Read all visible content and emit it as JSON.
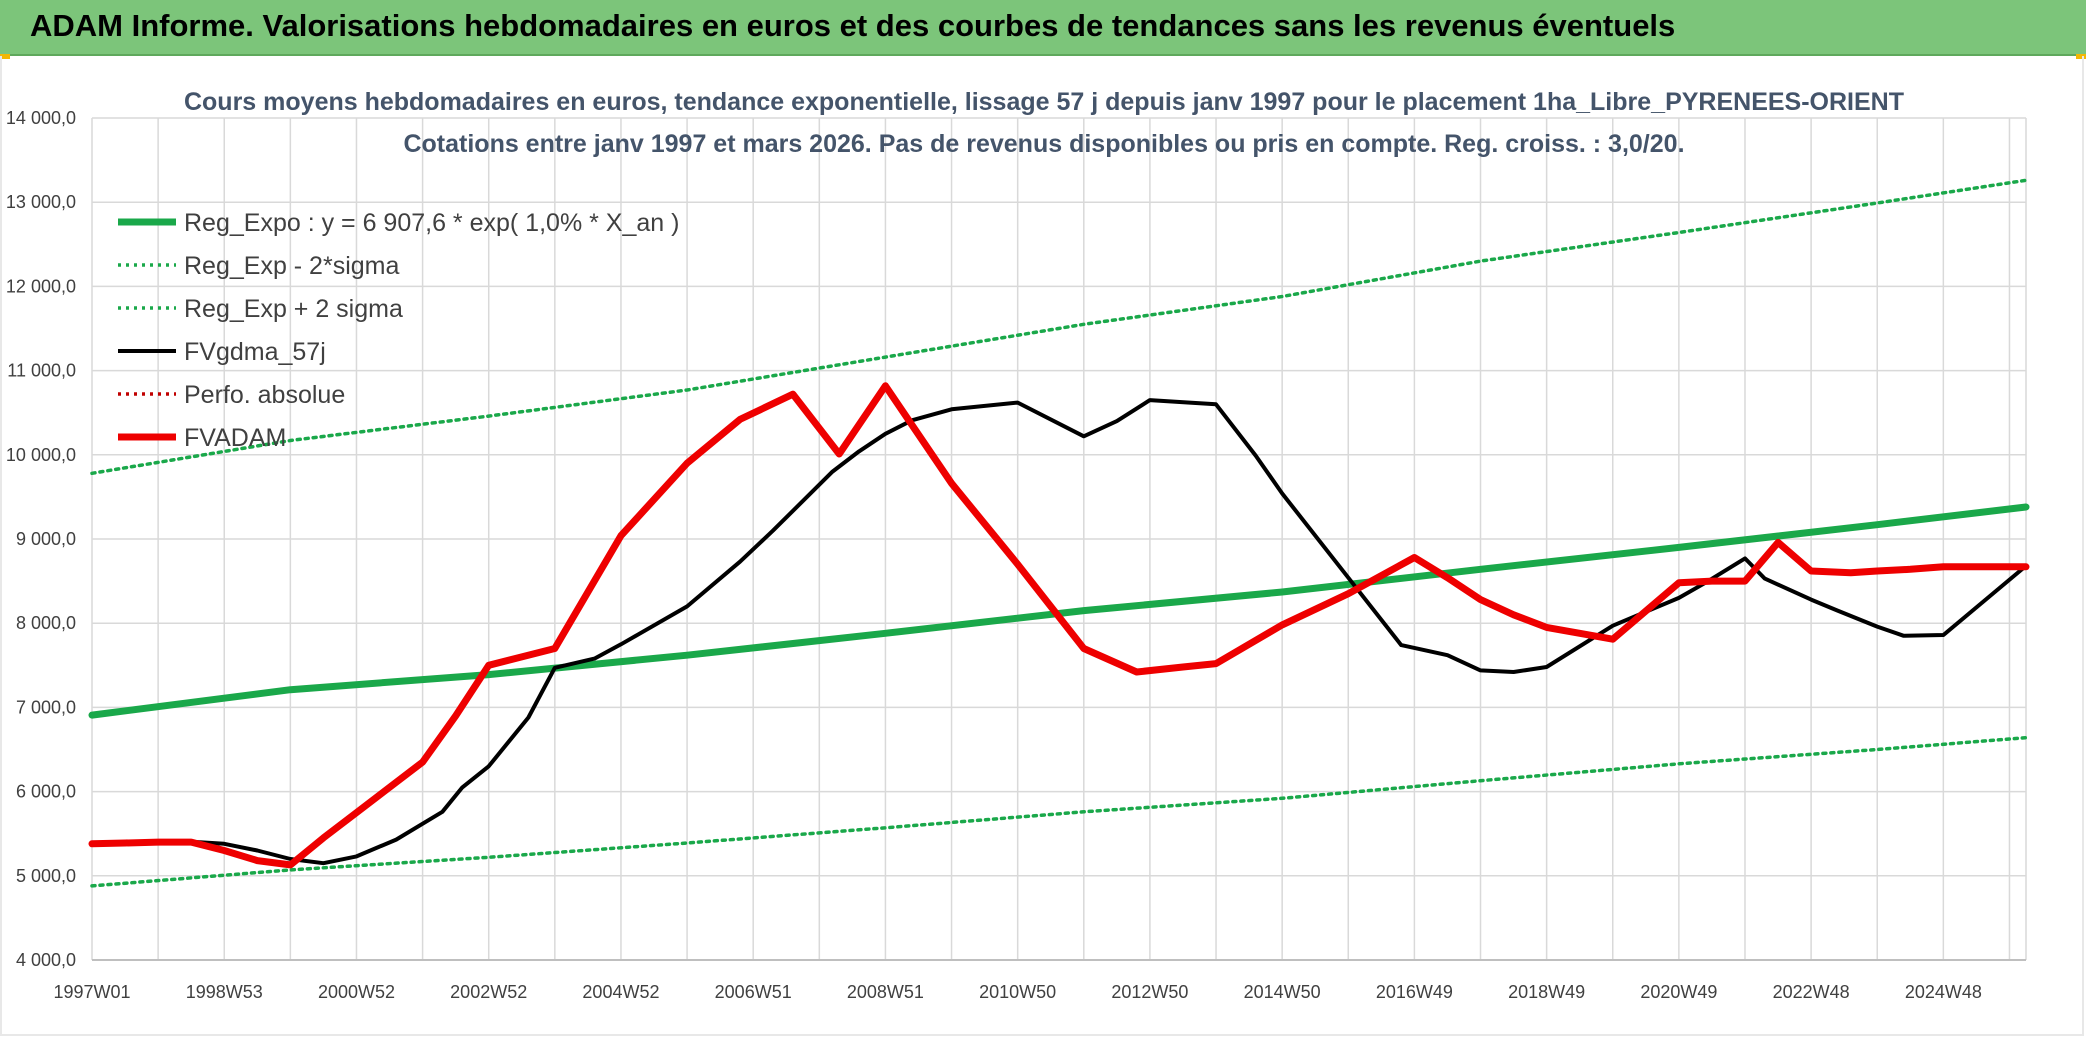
{
  "header": {
    "title": "ADAM Informe. Valorisations hebdomadaires en euros et des courbes de tendances sans les revenus éventuels"
  },
  "colors": {
    "banner": "#7cc57a",
    "trend": "#1aa84a",
    "band": "#1aa84a",
    "fv": "#000000",
    "perfo": "#c00000",
    "adam": "#ee0000",
    "grid": "#d9d9d9"
  },
  "chart_data": {
    "type": "line",
    "title": "Cours moyens hebdomadaires en euros, tendance exponentielle, lissage 57 j depuis janv 1997 pour le placement 1ha_Libre_PYRENEES-ORIENT",
    "subtitle": "Cotations entre janv 1997 et mars 2026. Pas de revenus disponibles ou pris en compte. Reg. croiss. : 3,0/20.",
    "xlabel": "",
    "ylabel": "",
    "x_range": [
      1997.0,
      2026.25
    ],
    "ylim": [
      4000,
      14000
    ],
    "y_ticks": [
      {
        "value": 4000,
        "label": "4 000,0"
      },
      {
        "value": 5000,
        "label": "5 000,0"
      },
      {
        "value": 6000,
        "label": "6 000,0"
      },
      {
        "value": 7000,
        "label": "7 000,0"
      },
      {
        "value": 8000,
        "label": "8 000,0"
      },
      {
        "value": 9000,
        "label": "9 000,0"
      },
      {
        "value": 10000,
        "label": "10 000,0"
      },
      {
        "value": 11000,
        "label": "11 000,0"
      },
      {
        "value": 12000,
        "label": "12 000,0"
      },
      {
        "value": 13000,
        "label": "13 000,0"
      },
      {
        "value": 14000,
        "label": "14 000,0"
      }
    ],
    "x_ticks": [
      {
        "value": 1997.0,
        "label": "1997W01"
      },
      {
        "value": 1999.0,
        "label": "1998W53"
      },
      {
        "value": 2001.0,
        "label": "2000W52"
      },
      {
        "value": 2003.0,
        "label": "2002W52"
      },
      {
        "value": 2005.0,
        "label": "2004W52"
      },
      {
        "value": 2007.0,
        "label": "2006W51"
      },
      {
        "value": 2009.0,
        "label": "2008W51"
      },
      {
        "value": 2011.0,
        "label": "2010W50"
      },
      {
        "value": 2013.0,
        "label": "2012W50"
      },
      {
        "value": 2015.0,
        "label": "2014W50"
      },
      {
        "value": 2017.0,
        "label": "2016W49"
      },
      {
        "value": 2019.0,
        "label": "2018W49"
      },
      {
        "value": 2021.0,
        "label": "2020W49"
      },
      {
        "value": 2023.0,
        "label": "2022W48"
      },
      {
        "value": 2025.0,
        "label": "2024W48"
      }
    ],
    "grid": true,
    "legend_position": "top-left",
    "series": [
      {
        "name": "Reg_Expo : y = 6 907,6 * exp( 1,0% *  X_an )",
        "style": "solid-thick",
        "color": "#1aa84a",
        "x": [
          1997.0,
          2000.0,
          2003.0,
          2006.0,
          2009.0,
          2012.0,
          2015.0,
          2018.0,
          2021.0,
          2024.0,
          2026.25
        ],
        "values": [
          6908,
          7210,
          7390,
          7620,
          7880,
          8150,
          8370,
          8640,
          8900,
          9170,
          9380
        ]
      },
      {
        "name": "Reg_Exp - 2*sigma",
        "style": "dotted",
        "color": "#1aa84a",
        "x": [
          1997.0,
          2000.0,
          2003.0,
          2006.0,
          2009.0,
          2012.0,
          2015.0,
          2018.0,
          2021.0,
          2024.0,
          2026.25
        ],
        "values": [
          4880,
          5070,
          5220,
          5390,
          5570,
          5760,
          5920,
          6130,
          6330,
          6500,
          6640
        ]
      },
      {
        "name": "Reg_Exp + 2 sigma",
        "style": "dotted",
        "color": "#1aa84a",
        "x": [
          1997.0,
          2000.0,
          2003.0,
          2006.0,
          2009.0,
          2012.0,
          2015.0,
          2018.0,
          2021.0,
          2024.0,
          2026.25
        ],
        "values": [
          9780,
          10170,
          10460,
          10770,
          11160,
          11550,
          11880,
          12300,
          12640,
          12990,
          13260
        ]
      },
      {
        "name": "FVgdma_57j",
        "style": "solid",
        "color": "#000000",
        "x": [
          1997.0,
          1997.8,
          1998.0,
          1998.6,
          1999.0,
          1999.5,
          2000.0,
          2000.5,
          2001.0,
          2001.6,
          2002.3,
          2002.6,
          2003.0,
          2003.6,
          2004.0,
          2004.6,
          2005.0,
          2006.0,
          2006.8,
          2007.3,
          2008.2,
          2008.6,
          2009.0,
          2009.4,
          2010.0,
          2011.0,
          2012.0,
          2012.5,
          2013.0,
          2013.6,
          2014.0,
          2014.6,
          2015.0,
          2016.0,
          2016.8,
          2017.5,
          2018.0,
          2018.5,
          2019.0,
          2020.0,
          2021.0,
          2021.4,
          2022.0,
          2022.3,
          2023.0,
          2023.4,
          2024.0,
          2024.4,
          2025.0,
          2026.25
        ],
        "values": [
          5370,
          5390,
          5400,
          5400,
          5380,
          5300,
          5200,
          5150,
          5230,
          5430,
          5760,
          6050,
          6300,
          6880,
          7470,
          7580,
          7750,
          8200,
          8730,
          9100,
          9800,
          10040,
          10250,
          10410,
          10540,
          10620,
          10220,
          10400,
          10650,
          10620,
          10600,
          9990,
          9540,
          8540,
          7740,
          7620,
          7440,
          7420,
          7480,
          7970,
          8300,
          8480,
          8770,
          8530,
          8280,
          8150,
          7960,
          7850,
          7860,
          8680
        ]
      },
      {
        "name": "Perfo. absolue",
        "style": "dotted",
        "color": "#c00000",
        "x": [],
        "values": []
      },
      {
        "name": "FVADAM",
        "style": "solid-thick",
        "color": "#ee0000",
        "x": [
          1997.0,
          1997.5,
          1998.0,
          1998.5,
          1999.0,
          1999.5,
          2000.0,
          2000.5,
          2001.0,
          2001.5,
          2002.0,
          2002.5,
          2003.0,
          2003.5,
          2004.0,
          2005.0,
          2006.0,
          2006.8,
          2007.6,
          2008.3,
          2009.0,
          2010.0,
          2011.0,
          2012.0,
          2012.8,
          2013.5,
          2014.0,
          2015.0,
          2016.0,
          2017.0,
          2017.5,
          2018.0,
          2018.5,
          2019.0,
          2020.0,
          2021.0,
          2021.5,
          2022.0,
          2022.5,
          2023.0,
          2023.6,
          2024.0,
          2024.5,
          2025.0,
          2026.25
        ],
        "values": [
          5380,
          5390,
          5400,
          5400,
          5300,
          5180,
          5130,
          5450,
          5750,
          6050,
          6350,
          6900,
          7500,
          7600,
          7700,
          9040,
          9900,
          10420,
          10720,
          10010,
          10820,
          9660,
          8700,
          7700,
          7420,
          7480,
          7520,
          7980,
          8350,
          8780,
          8540,
          8280,
          8100,
          7950,
          7810,
          8480,
          8500,
          8500,
          8960,
          8620,
          8600,
          8620,
          8640,
          8670,
          8670
        ]
      }
    ]
  }
}
